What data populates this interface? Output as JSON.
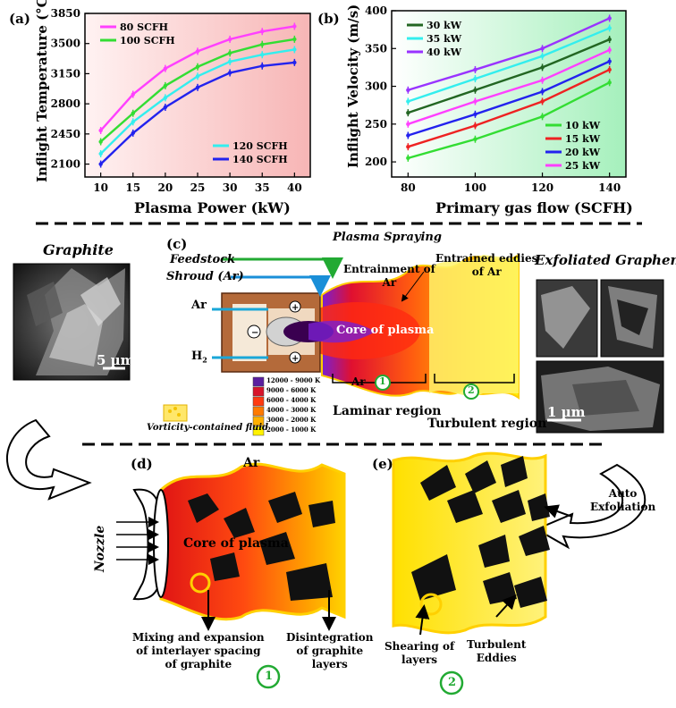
{
  "charts": {
    "a": {
      "panel": "(a)",
      "type": "line",
      "xlabel": "Plasma Power (kW)",
      "ylabel": "Inflight Temperature (°C)",
      "x": [
        10,
        15,
        20,
        25,
        30,
        35,
        40
      ],
      "xticks": [
        "10",
        "15",
        "20",
        "25",
        "30",
        "35",
        "40"
      ],
      "yticks": [
        "2100",
        "2450",
        "2800",
        "3150",
        "3500",
        "3850"
      ],
      "ylim": [
        1950,
        3850
      ],
      "series": [
        {
          "name": "80 SCFH",
          "color": "#ff40ff",
          "values": [
            2490,
            2910,
            3210,
            3410,
            3550,
            3640,
            3700
          ]
        },
        {
          "name": "100 SCFH",
          "color": "#33dd33",
          "values": [
            2360,
            2690,
            3010,
            3230,
            3390,
            3490,
            3550
          ]
        },
        {
          "name": "120 SCFH",
          "color": "#33eeee",
          "values": [
            2220,
            2590,
            2870,
            3120,
            3290,
            3370,
            3430
          ]
        },
        {
          "name": "140 SCFH",
          "color": "#2222ee",
          "values": [
            2100,
            2460,
            2760,
            2990,
            3160,
            3240,
            3280
          ]
        }
      ]
    },
    "b": {
      "panel": "(b)",
      "type": "line",
      "xlabel": "Primary gas flow (SCFH)",
      "ylabel": "Inflight Velocity (m/s)",
      "x": [
        80,
        100,
        120,
        140
      ],
      "xticks": [
        "80",
        "100",
        "120",
        "140"
      ],
      "yticks": [
        "200",
        "250",
        "300",
        "350",
        "400"
      ],
      "ylim": [
        180,
        400
      ],
      "series": [
        {
          "name": "10 kW",
          "color": "#33dd33",
          "values": [
            205,
            230,
            260,
            305
          ]
        },
        {
          "name": "15 kW",
          "color": "#ee2222",
          "values": [
            220,
            248,
            280,
            322
          ]
        },
        {
          "name": "20 kW",
          "color": "#2222ee",
          "values": [
            235,
            263,
            293,
            333
          ]
        },
        {
          "name": "25 kW",
          "color": "#ff40ff",
          "values": [
            250,
            280,
            308,
            348
          ]
        },
        {
          "name": "30 kW",
          "color": "#226622",
          "values": [
            265,
            295,
            325,
            362
          ]
        },
        {
          "name": "35 kW",
          "color": "#33eeee",
          "values": [
            280,
            310,
            340,
            377
          ]
        },
        {
          "name": "40 kW",
          "color": "#9933ff",
          "values": [
            295,
            322,
            350,
            390
          ]
        }
      ]
    }
  },
  "chart_data": [
    {
      "type": "line",
      "title": "(a)",
      "xlabel": "Plasma Power (kW)",
      "ylabel": "Inflight Temperature (°C)",
      "x": [
        10,
        15,
        20,
        25,
        30,
        35,
        40
      ],
      "ylim": [
        1950,
        3850
      ],
      "series": [
        {
          "name": "80 SCFH",
          "values": [
            2490,
            2910,
            3210,
            3410,
            3550,
            3640,
            3700
          ]
        },
        {
          "name": "100 SCFH",
          "values": [
            2360,
            2690,
            3010,
            3230,
            3390,
            3490,
            3550
          ]
        },
        {
          "name": "120 SCFH",
          "values": [
            2220,
            2590,
            2870,
            3120,
            3290,
            3370,
            3430
          ]
        },
        {
          "name": "140 SCFH",
          "values": [
            2100,
            2460,
            2760,
            2990,
            3160,
            3240,
            3280
          ]
        }
      ]
    },
    {
      "type": "line",
      "title": "(b)",
      "xlabel": "Primary gas flow (SCFH)",
      "ylabel": "Inflight Velocity (m/s)",
      "x": [
        80,
        100,
        120,
        140
      ],
      "ylim": [
        180,
        400
      ],
      "series": [
        {
          "name": "10 kW",
          "values": [
            205,
            230,
            260,
            305
          ]
        },
        {
          "name": "15 kW",
          "values": [
            220,
            248,
            280,
            322
          ]
        },
        {
          "name": "20 kW",
          "values": [
            235,
            263,
            293,
            333
          ]
        },
        {
          "name": "25 kW",
          "values": [
            250,
            280,
            308,
            348
          ]
        },
        {
          "name": "30 kW",
          "values": [
            265,
            295,
            325,
            362
          ]
        },
        {
          "name": "35 kW",
          "values": [
            280,
            310,
            340,
            377
          ]
        },
        {
          "name": "40 kW",
          "values": [
            295,
            322,
            350,
            390
          ]
        }
      ]
    }
  ],
  "panel_c": {
    "label": "(c)",
    "title": "Plasma Spraying",
    "feedstock": "Feedstock",
    "shroud": "Shroud (Ar)",
    "ar_left": "Ar",
    "h2": "H",
    "h2_sub": "2",
    "entrainment": "Entrainment of",
    "entrainment_line2": "Ar",
    "eddies": "Entrained eddies",
    "eddies_line2": "of Ar",
    "core": "Core of plasma",
    "ar_bottom": "Ar",
    "num1": "1",
    "num2": "2",
    "laminar": "Laminar region",
    "turbulent": "Turbulent region",
    "temp_legend": [
      "12000 - 9000 K",
      "9000 - 6000 K",
      "6000 - 4000 K",
      "4000 - 3000 K",
      "3000 - 2000 K",
      "2000 - 1000 K"
    ],
    "temp_colors": [
      "#5a1fa0",
      "#d8142a",
      "#ff3a10",
      "#ff7a00",
      "#ffb000",
      "#fff200"
    ],
    "vorticity": "Vorticity-contained fluid"
  },
  "graphite": {
    "title": "Graphite",
    "scale": "5 µm"
  },
  "graphene": {
    "title": "Exfoliated Graphene",
    "scale": "1 µm"
  },
  "panel_d": {
    "label": "(d)",
    "ar": "Ar",
    "nozzle": "Nozzle",
    "core": "Core of plasma",
    "mixing": "Mixing and expansion",
    "mixing2": "of interlayer spacing",
    "mixing3": "of graphite",
    "disintegration": "Disintegration",
    "disintegration2": "of graphite",
    "disintegration3": "layers",
    "num": "1"
  },
  "panel_e": {
    "label": "(e)",
    "auto": "Auto",
    "auto2": "Exfoliation",
    "shearing": "Shearing of",
    "shearing2": "layers",
    "turbulent": "Turbulent",
    "turbulent2": "Eddies",
    "num": "2"
  }
}
